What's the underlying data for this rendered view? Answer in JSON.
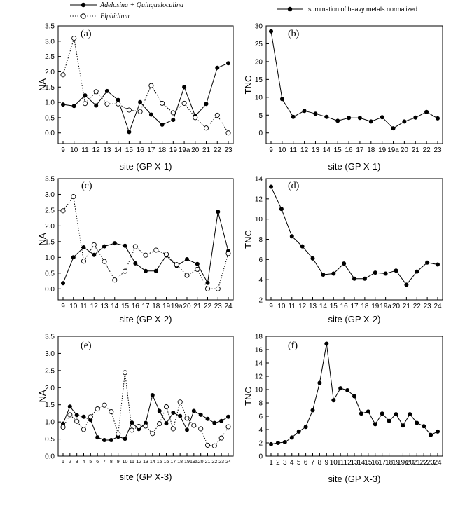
{
  "legends": {
    "left_series": [
      "Adelosina + Quinqueloculina",
      "Elphidium"
    ],
    "right_series": [
      "summation of heavy metals normalized"
    ]
  },
  "chart_data": [
    {
      "type": "line",
      "panel_label": "(a)",
      "xlabel": "site (GP X-1)",
      "ylabel": "NA",
      "categories": [
        "9",
        "10",
        "11",
        "12",
        "13",
        "14",
        "15",
        "16",
        "17",
        "18",
        "19",
        "19a",
        "20",
        "21",
        "22",
        "23"
      ],
      "ylim": [
        -0.35,
        3.5
      ],
      "yticks": [
        0.0,
        0.5,
        1.0,
        1.5,
        2.0,
        2.5,
        3.0,
        3.5
      ],
      "series": [
        {
          "name": "Adelosina + Quinqueloculina",
          "marker": "filled",
          "line": "solid",
          "values": [
            0.93,
            0.88,
            1.23,
            0.9,
            1.37,
            1.08,
            0.03,
            1.01,
            0.6,
            0.27,
            0.43,
            1.5,
            0.55,
            0.95,
            2.13,
            2.28
          ]
        },
        {
          "name": "Elphidium",
          "marker": "open",
          "line": "dotted",
          "values": [
            1.9,
            3.1,
            0.96,
            1.35,
            0.95,
            0.95,
            0.75,
            0.7,
            1.55,
            0.97,
            0.66,
            0.97,
            0.5,
            0.16,
            0.58,
            0.0
          ]
        }
      ]
    },
    {
      "type": "line",
      "panel_label": "(b)",
      "xlabel": "site (GP X-1)",
      "ylabel": "TNC",
      "categories": [
        "9",
        "10",
        "11",
        "12",
        "13",
        "14",
        "15",
        "16",
        "17",
        "18",
        "19",
        "19a",
        "20",
        "21",
        "22",
        "23"
      ],
      "ylim": [
        -3,
        30
      ],
      "yticks": [
        0,
        5,
        10,
        15,
        20,
        25,
        30
      ],
      "series": [
        {
          "name": "summation of heavy metals normalized",
          "marker": "filled",
          "line": "solid",
          "values": [
            28.5,
            9.5,
            4.5,
            6.2,
            5.4,
            4.5,
            3.4,
            4.2,
            4.2,
            3.2,
            4.4,
            1.3,
            3.2,
            4.3,
            5.9,
            4.1
          ]
        }
      ]
    },
    {
      "type": "line",
      "panel_label": "(c)",
      "xlabel": "site (GP X-2)",
      "ylabel": "NA",
      "categories": [
        "9",
        "10",
        "11",
        "12",
        "13",
        "14",
        "15",
        "16",
        "17",
        "18",
        "19",
        "19a",
        "20",
        "21",
        "22",
        "23",
        "24"
      ],
      "ylim": [
        -0.35,
        3.5
      ],
      "yticks": [
        0.0,
        0.5,
        1.0,
        1.5,
        2.0,
        2.5,
        3.0,
        3.5
      ],
      "series": [
        {
          "name": "Adelosina + Quinqueloculina",
          "marker": "filled",
          "line": "solid",
          "values": [
            0.18,
            1.0,
            1.32,
            1.08,
            1.35,
            1.45,
            1.37,
            0.81,
            0.57,
            0.57,
            1.06,
            0.73,
            0.94,
            0.79,
            0.19,
            2.45,
            1.2
          ]
        },
        {
          "name": "Elphidium",
          "marker": "open",
          "line": "dotted",
          "values": [
            2.48,
            2.93,
            0.88,
            1.4,
            0.87,
            0.28,
            0.56,
            1.34,
            1.07,
            1.23,
            1.1,
            0.77,
            0.43,
            0.62,
            0.0,
            0.0,
            1.12
          ]
        }
      ]
    },
    {
      "type": "line",
      "panel_label": "(d)",
      "xlabel": "site (GP X-2)",
      "ylabel": "TNC",
      "categories": [
        "9",
        "10",
        "11",
        "12",
        "13",
        "14",
        "15",
        "16",
        "17",
        "18",
        "19",
        "19a",
        "20",
        "21",
        "22",
        "23",
        "24"
      ],
      "ylim": [
        2,
        14
      ],
      "yticks": [
        2,
        4,
        6,
        8,
        10,
        12,
        14
      ],
      "series": [
        {
          "name": "summation of heavy metals normalized",
          "marker": "filled",
          "line": "solid",
          "values": [
            13.2,
            11.0,
            8.3,
            7.3,
            6.1,
            4.5,
            4.6,
            5.6,
            4.1,
            4.1,
            4.7,
            4.6,
            4.9,
            3.5,
            4.8,
            5.7,
            5.5
          ]
        }
      ]
    },
    {
      "type": "line",
      "panel_label": "(e)",
      "xlabel": "site (GP X-3)",
      "ylabel": "NA",
      "categories": [
        "1",
        "2",
        "3",
        "4",
        "5",
        "6",
        "7",
        "8",
        "9",
        "10",
        "11",
        "12",
        "13",
        "14",
        "15",
        "16",
        "17",
        "18",
        "19",
        "19a",
        "20",
        "21",
        "22",
        "23",
        "24"
      ],
      "ylim": [
        0,
        3.5
      ],
      "yticks": [
        0.0,
        0.5,
        1.0,
        1.5,
        2.0,
        2.5,
        3.0,
        3.5
      ],
      "series": [
        {
          "name": "Adelosina + Quinqueloculina",
          "marker": "filled",
          "line": "solid",
          "values": [
            0.95,
            1.45,
            1.2,
            1.15,
            1.06,
            0.55,
            0.47,
            0.47,
            0.57,
            0.51,
            0.98,
            0.79,
            0.97,
            1.78,
            1.32,
            0.96,
            1.27,
            1.17,
            0.77,
            1.32,
            1.21,
            1.09,
            0.97,
            1.03,
            1.15
          ]
        },
        {
          "name": "Elphidium",
          "marker": "open",
          "line": "dotted",
          "values": [
            0.85,
            1.21,
            1.02,
            0.78,
            1.15,
            1.38,
            1.49,
            1.3,
            0.65,
            2.44,
            0.76,
            0.87,
            0.88,
            0.66,
            0.95,
            1.44,
            0.8,
            1.58,
            1.11,
            0.9,
            0.8,
            0.32,
            0.3,
            0.53,
            0.86
          ]
        }
      ]
    },
    {
      "type": "line",
      "panel_label": "(f)",
      "xlabel": "site (GP X-3)",
      "ylabel": "TNC",
      "categories": [
        "1",
        "2",
        "3",
        "4",
        "5",
        "6",
        "7",
        "8",
        "9",
        "10",
        "11",
        "12",
        "13",
        "14",
        "15",
        "16",
        "17",
        "18",
        "19",
        "19a",
        "20",
        "21",
        "22",
        "23",
        "24"
      ],
      "ylim": [
        0,
        18
      ],
      "yticks": [
        0,
        2,
        4,
        6,
        8,
        10,
        12,
        14,
        16,
        18
      ],
      "series": [
        {
          "name": "summation of heavy metals normalized",
          "marker": "filled",
          "line": "solid",
          "values": [
            1.8,
            2.0,
            2.1,
            2.8,
            3.7,
            4.4,
            6.9,
            11.0,
            16.9,
            8.4,
            10.2,
            9.9,
            9.0,
            6.4,
            6.7,
            4.8,
            6.4,
            5.3,
            6.3,
            4.6,
            6.3,
            5.0,
            4.5,
            3.2,
            3.7
          ]
        }
      ]
    }
  ]
}
